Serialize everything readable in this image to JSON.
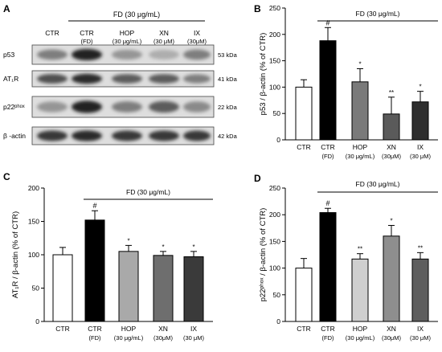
{
  "blot": {
    "panel_label": "A",
    "treatment_header": "FD (30 μg/mL)",
    "lanes": [
      {
        "line1": "CTR",
        "line2": ""
      },
      {
        "line1": "CTR",
        "line2": "(FD)"
      },
      {
        "line1": "HOP",
        "line2": "(30 μg/mL)"
      },
      {
        "line1": "XN",
        "line2": "(30 μM)"
      },
      {
        "line1": "IX",
        "line2": "(30μM)"
      }
    ],
    "bands": [
      {
        "protein": "p53",
        "kda": "53 kDa"
      },
      {
        "protein": "AT₁R",
        "kda": "41 kDa"
      },
      {
        "protein": "p22ᵖʰᵒˣ",
        "kda": "22 kDa"
      },
      {
        "protein": "β -actin",
        "kda": "42 kDa"
      }
    ]
  },
  "chart_data": [
    {
      "panel": "B",
      "type": "bar",
      "treatment_header": "FD (30 μg/mL)",
      "ylabel": "p53 / β-actin (% of CTR)",
      "xlabel": "",
      "ylim": [
        0,
        250
      ],
      "yticks": [
        0,
        50,
        100,
        150,
        200,
        250
      ],
      "grid": false,
      "categories": [
        {
          "line1": "CTR",
          "line2": ""
        },
        {
          "line1": "CTR",
          "line2": "(FD)"
        },
        {
          "line1": "HOP",
          "line2": "(30 μg/mL)"
        },
        {
          "line1": "XN",
          "line2": "(30μM)"
        },
        {
          "line1": "IX",
          "line2": "(30 μM)"
        }
      ],
      "values": [
        100,
        188,
        110,
        49,
        72
      ],
      "errors": [
        14,
        25,
        25,
        32,
        20
      ],
      "marks": [
        "",
        "#",
        "*",
        "**",
        "*"
      ],
      "colors": [
        "#ffffff",
        "#000000",
        "#7a7a7a",
        "#5a5a5a",
        "#2e2e2e"
      ]
    },
    {
      "panel": "C",
      "type": "bar",
      "treatment_header": "FD (30 μg/mL)",
      "ylabel": "AT₁R / β-actin (% of CTR)",
      "xlabel": "",
      "ylim": [
        0,
        200
      ],
      "yticks": [
        0,
        50,
        100,
        150,
        200
      ],
      "grid": false,
      "categories": [
        {
          "line1": "CTR",
          "line2": ""
        },
        {
          "line1": "CTR",
          "line2": "(FD)"
        },
        {
          "line1": "HOP",
          "line2": "(30 μg/mL)"
        },
        {
          "line1": "XN",
          "line2": "(30μM)"
        },
        {
          "line1": "IX",
          "line2": "(30 μM)"
        }
      ],
      "values": [
        100,
        152,
        105,
        99,
        97
      ],
      "errors": [
        11,
        14,
        9,
        6,
        8
      ],
      "marks": [
        "",
        "#",
        "*",
        "*",
        "*"
      ],
      "colors": [
        "#ffffff",
        "#000000",
        "#a9a9a9",
        "#6e6e6e",
        "#3a3a3a"
      ]
    },
    {
      "panel": "D",
      "type": "bar",
      "treatment_header": "FD (30 μg/mL)",
      "ylabel": "p22ᵖʰᵒˣ / β-actin (% of CTR)",
      "xlabel": "",
      "ylim": [
        0,
        250
      ],
      "yticks": [
        0,
        50,
        100,
        150,
        200,
        250
      ],
      "grid": false,
      "categories": [
        {
          "line1": "CTR",
          "line2": ""
        },
        {
          "line1": "CTR",
          "line2": "(FD)"
        },
        {
          "line1": "HOP",
          "line2": "(30 μg/mL)"
        },
        {
          "line1": "XN",
          "line2": "(30μM)"
        },
        {
          "line1": "IX",
          "line2": "(30 μM)"
        }
      ],
      "values": [
        100,
        204,
        117,
        160,
        117
      ],
      "errors": [
        18,
        8,
        10,
        20,
        12
      ],
      "marks": [
        "",
        "#",
        "**",
        "*",
        "**"
      ],
      "colors": [
        "#ffffff",
        "#000000",
        "#cfcfcf",
        "#8e8e8e",
        "#5e5e5e"
      ]
    }
  ]
}
